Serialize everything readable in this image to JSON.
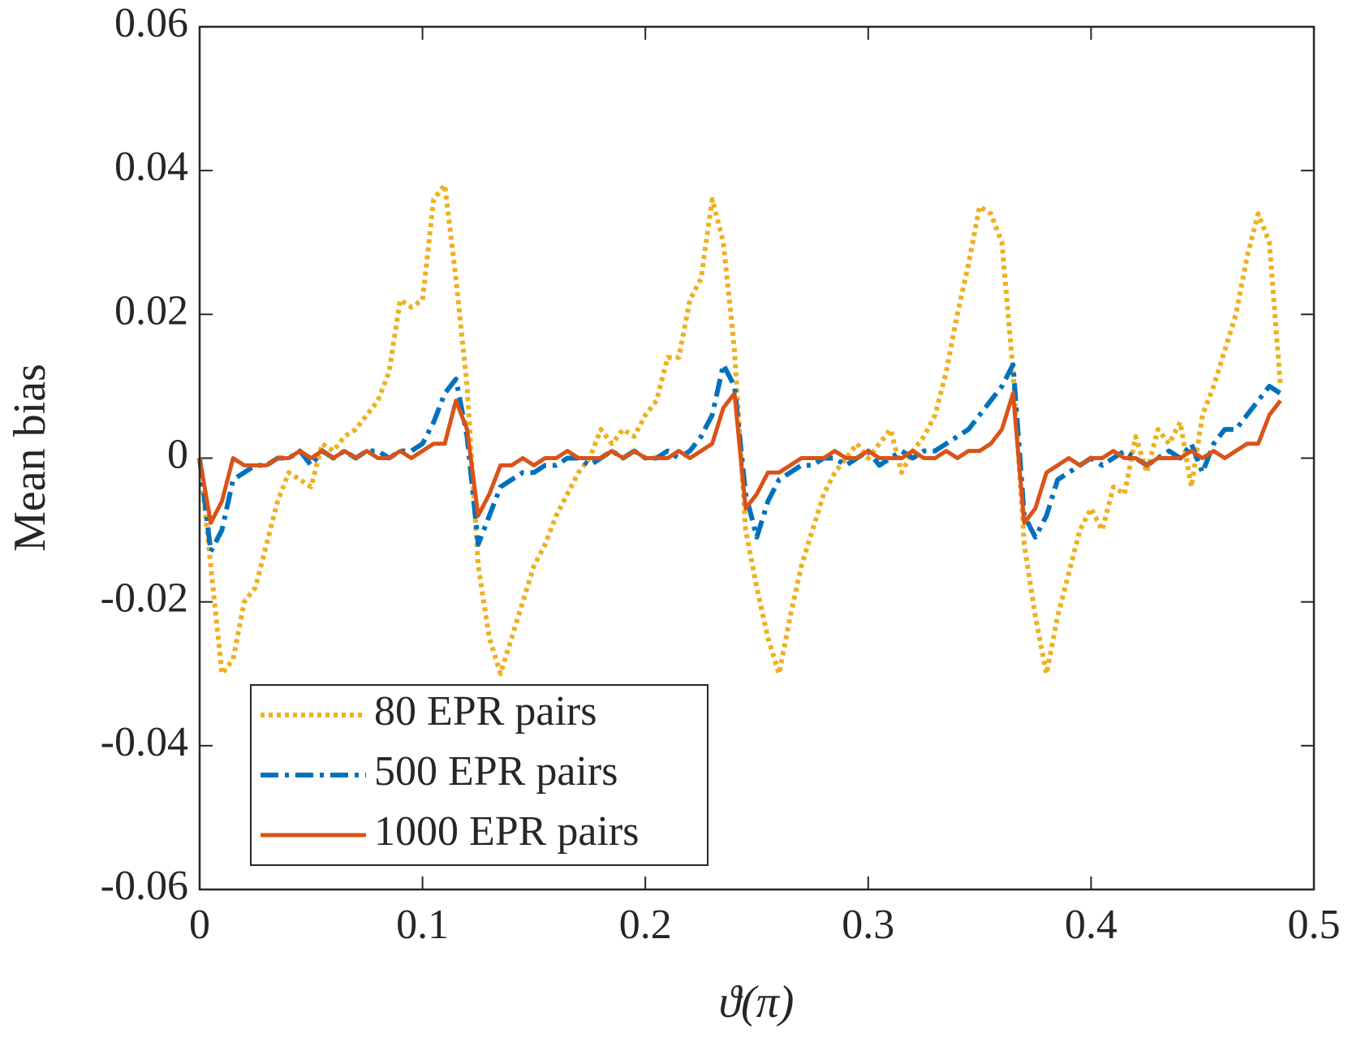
{
  "chart_data": {
    "type": "line",
    "xlabel": "ϑ(π)",
    "ylabel": "Mean bias",
    "x": [
      0,
      0.005,
      0.01,
      0.015,
      0.02,
      0.025,
      0.03,
      0.035,
      0.04,
      0.045,
      0.05,
      0.055,
      0.06,
      0.065,
      0.07,
      0.075,
      0.08,
      0.085,
      0.09,
      0.095,
      0.1,
      0.105,
      0.11,
      0.115,
      0.12,
      0.125,
      0.13,
      0.135,
      0.14,
      0.145,
      0.15,
      0.155,
      0.16,
      0.165,
      0.17,
      0.175,
      0.18,
      0.185,
      0.19,
      0.195,
      0.2,
      0.205,
      0.21,
      0.215,
      0.22,
      0.225,
      0.23,
      0.235,
      0.24,
      0.245,
      0.25,
      0.255,
      0.26,
      0.265,
      0.27,
      0.275,
      0.28,
      0.285,
      0.29,
      0.295,
      0.3,
      0.305,
      0.31,
      0.315,
      0.32,
      0.325,
      0.33,
      0.335,
      0.34,
      0.345,
      0.35,
      0.355,
      0.36,
      0.365,
      0.37,
      0.375,
      0.38,
      0.385,
      0.39,
      0.395,
      0.4,
      0.405,
      0.41,
      0.415,
      0.42,
      0.425,
      0.43,
      0.435,
      0.44,
      0.445,
      0.45,
      0.455,
      0.46,
      0.465,
      0.47,
      0.475,
      0.48,
      0.485
    ],
    "series": [
      {
        "name": "80 EPR pairs",
        "color": "#EDB120",
        "style": "dotted",
        "values": [
          0,
          -0.015,
          -0.03,
          -0.028,
          -0.02,
          -0.018,
          -0.012,
          -0.006,
          -0.002,
          -0.003,
          -0.004,
          0.002,
          0.001,
          0.003,
          0.004,
          0.006,
          0.008,
          0.012,
          0.022,
          0.021,
          0.022,
          0.036,
          0.038,
          0.025,
          0.01,
          -0.015,
          -0.025,
          -0.03,
          -0.025,
          -0.02,
          -0.015,
          -0.012,
          -0.008,
          -0.005,
          -0.002,
          0,
          0.004,
          0.002,
          0.004,
          0.003,
          0.006,
          0.008,
          0.014,
          0.014,
          0.022,
          0.025,
          0.036,
          0.03,
          0.015,
          -0.01,
          -0.018,
          -0.025,
          -0.03,
          -0.022,
          -0.015,
          -0.01,
          -0.005,
          -0.002,
          0,
          0.002,
          0,
          0.002,
          0.004,
          -0.002,
          0.001,
          0.003,
          0.006,
          0.012,
          0.02,
          0.027,
          0.035,
          0.034,
          0.03,
          0.012,
          -0.012,
          -0.022,
          -0.03,
          -0.022,
          -0.016,
          -0.01,
          -0.007,
          -0.01,
          -0.004,
          -0.005,
          0.003,
          -0.002,
          0.004,
          0.002,
          0.005,
          -0.004,
          0.006,
          0.01,
          0.015,
          0.02,
          0.028,
          0.034,
          0.03,
          0.01
        ]
      },
      {
        "name": "500 EPR pairs",
        "color": "#0072BD",
        "style": "dashdot",
        "values": [
          0,
          -0.013,
          -0.01,
          -0.003,
          -0.002,
          -0.001,
          -0.001,
          0,
          0,
          0.001,
          -0.001,
          0.001,
          0,
          0.001,
          0,
          0.001,
          0.001,
          0,
          0.001,
          0.001,
          0.002,
          0.005,
          0.009,
          0.011,
          0.003,
          -0.012,
          -0.008,
          -0.004,
          -0.003,
          -0.002,
          -0.002,
          -0.001,
          -0.001,
          0,
          0,
          -0.001,
          0,
          0.001,
          0,
          0.001,
          0,
          0,
          0.001,
          0,
          0.001,
          0.003,
          0.006,
          0.013,
          0.01,
          -0.005,
          -0.011,
          -0.006,
          -0.003,
          -0.002,
          -0.001,
          -0.001,
          0,
          0,
          -0.001,
          0,
          0.001,
          -0.001,
          0,
          0.001,
          0,
          0.001,
          0.001,
          0.002,
          0.003,
          0.004,
          0.006,
          0.008,
          0.01,
          0.013,
          -0.008,
          -0.011,
          -0.008,
          -0.003,
          -0.002,
          -0.001,
          0,
          -0.001,
          0,
          0.001,
          0,
          -0.001,
          0,
          0.001,
          0,
          0.002,
          -0.002,
          0.002,
          0.004,
          0.004,
          0.006,
          0.008,
          0.01,
          0.009
        ]
      },
      {
        "name": "1000 EPR pairs",
        "color": "#D95319",
        "style": "solid",
        "values": [
          0,
          -0.009,
          -0.006,
          0,
          -0.001,
          -0.001,
          -0.001,
          0,
          0,
          0.001,
          0,
          0.001,
          0,
          0.001,
          0,
          0.001,
          0,
          0,
          0.001,
          0,
          0.001,
          0.002,
          0.002,
          0.008,
          0.004,
          -0.008,
          -0.005,
          -0.001,
          -0.001,
          0,
          -0.001,
          0,
          0,
          0.001,
          0,
          0,
          0,
          0.001,
          0,
          0.001,
          0,
          0,
          0,
          0.001,
          0,
          0.001,
          0.002,
          0.007,
          0.009,
          -0.007,
          -0.005,
          -0.002,
          -0.002,
          -0.001,
          0,
          0,
          0,
          0.001,
          0,
          0,
          0.001,
          0,
          0,
          0,
          0.001,
          0,
          0,
          0.001,
          0,
          0.001,
          0.001,
          0.002,
          0.004,
          0.009,
          -0.009,
          -0.007,
          -0.002,
          -0.001,
          0,
          -0.001,
          0,
          0,
          0.001,
          0,
          0,
          -0.001,
          0,
          0,
          0,
          0.001,
          0,
          0.001,
          0,
          0.001,
          0.002,
          0.002,
          0.006,
          0.008
        ]
      }
    ],
    "xlim": [
      0,
      0.5
    ],
    "xticks": [
      0,
      0.1,
      0.2,
      0.3,
      0.4,
      0.5
    ],
    "ylim": [
      -0.06,
      0.06
    ],
    "yticks": [
      -0.06,
      -0.04,
      -0.02,
      0,
      0.02,
      0.04,
      0.06
    ],
    "grid": false,
    "legend": "lower left"
  }
}
